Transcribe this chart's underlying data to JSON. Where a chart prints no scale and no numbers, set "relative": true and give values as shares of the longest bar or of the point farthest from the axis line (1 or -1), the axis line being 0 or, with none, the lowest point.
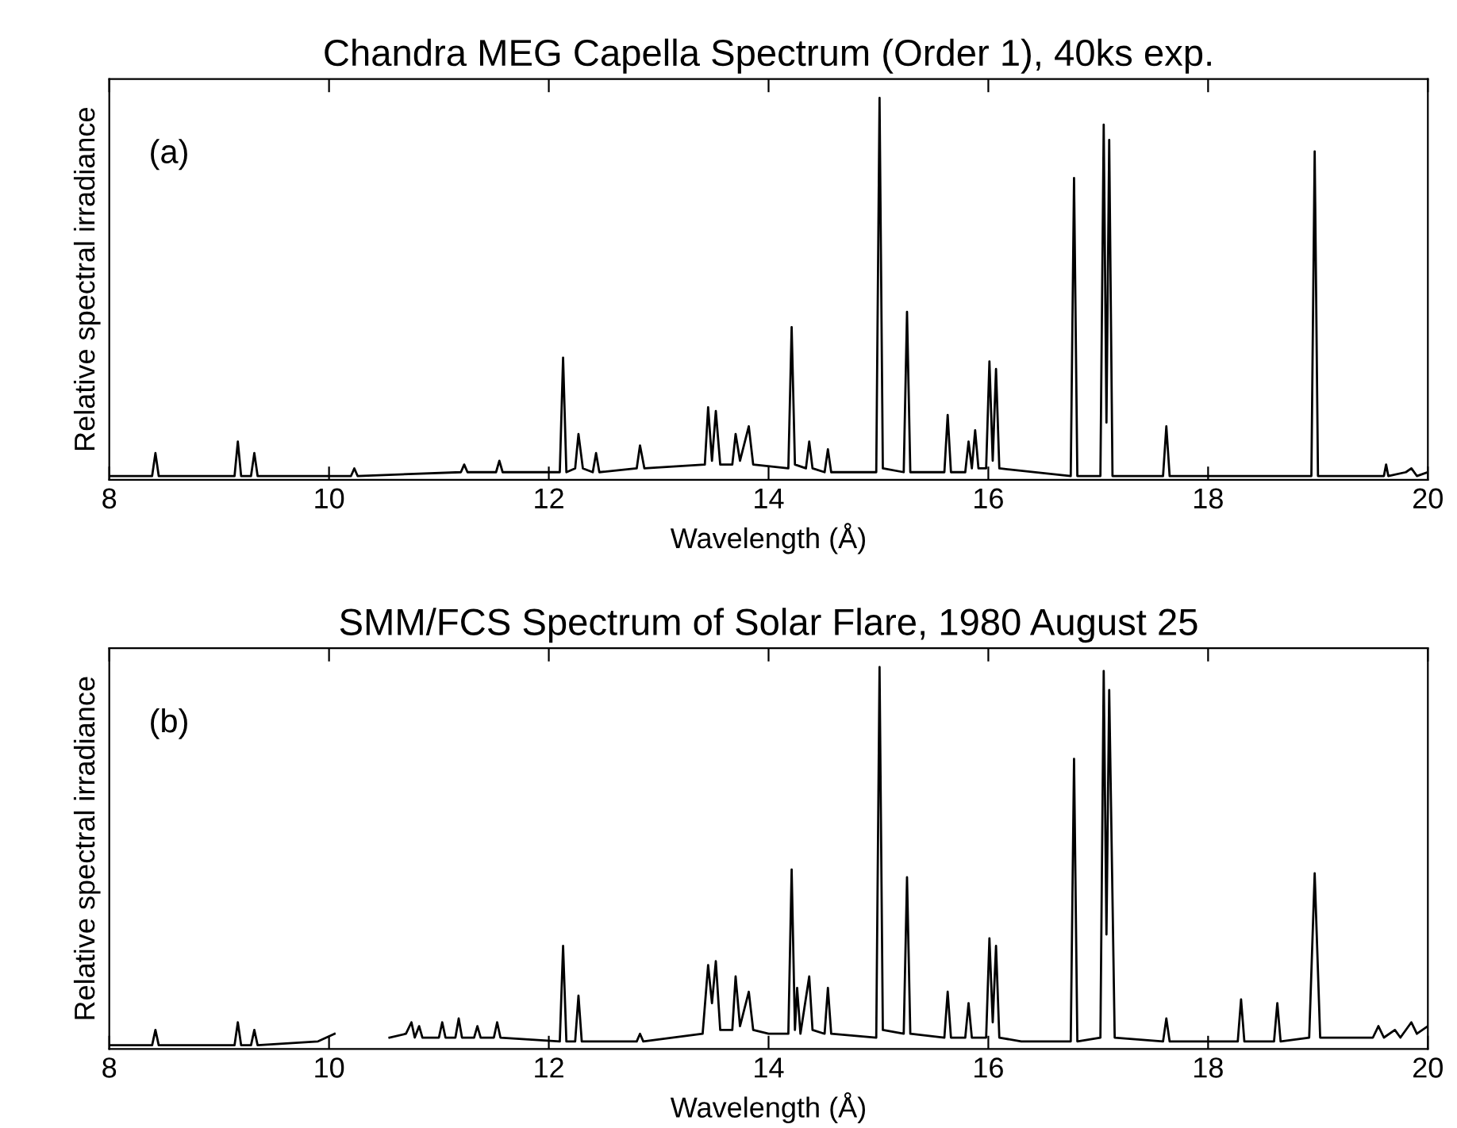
{
  "chart_data": [
    {
      "type": "line",
      "title": "Chandra MEG Capella Spectrum (Order 1), 40ks exp.",
      "xlabel": "Wavelength (Å)",
      "ylabel": "Relative spectral irradiance",
      "relative": true,
      "color": "#000000",
      "annotations": [
        "(a)"
      ],
      "xlim": [
        8,
        20
      ],
      "xticks": [
        8,
        10,
        12,
        14,
        16,
        18,
        20
      ],
      "x": [
        8.0,
        8.39,
        8.42,
        8.45,
        9.14,
        9.17,
        9.2,
        9.29,
        9.32,
        9.35,
        10.2,
        10.23,
        10.26,
        11.2,
        11.23,
        11.26,
        11.52,
        11.55,
        11.58,
        12.1,
        12.13,
        12.16,
        12.24,
        12.27,
        12.31,
        12.4,
        12.43,
        12.46,
        12.8,
        12.83,
        12.87,
        13.42,
        13.45,
        13.485,
        13.52,
        13.56,
        13.67,
        13.7,
        13.74,
        13.82,
        13.86,
        14.18,
        14.21,
        14.24,
        14.34,
        14.37,
        14.4,
        14.51,
        14.54,
        14.57,
        14.98,
        15.01,
        15.04,
        15.23,
        15.26,
        15.29,
        15.6,
        15.63,
        15.66,
        15.79,
        15.82,
        15.85,
        15.88,
        15.91,
        15.98,
        16.01,
        16.04,
        16.07,
        16.1,
        16.75,
        16.78,
        16.81,
        17.02,
        17.05,
        17.075,
        17.1,
        17.13,
        17.59,
        17.62,
        17.65,
        18.94,
        18.97,
        19.0,
        19.6,
        19.62,
        19.64,
        19.8,
        19.85,
        19.9,
        20.0
      ],
      "values": [
        0.01,
        0.01,
        0.07,
        0.01,
        0.01,
        0.1,
        0.01,
        0.01,
        0.07,
        0.01,
        0.01,
        0.03,
        0.01,
        0.02,
        0.04,
        0.02,
        0.02,
        0.05,
        0.02,
        0.02,
        0.32,
        0.02,
        0.03,
        0.12,
        0.03,
        0.02,
        0.07,
        0.02,
        0.03,
        0.09,
        0.03,
        0.04,
        0.19,
        0.05,
        0.18,
        0.04,
        0.04,
        0.12,
        0.05,
        0.14,
        0.04,
        0.03,
        0.4,
        0.04,
        0.03,
        0.1,
        0.03,
        0.02,
        0.08,
        0.02,
        0.02,
        1.0,
        0.03,
        0.02,
        0.44,
        0.02,
        0.02,
        0.17,
        0.02,
        0.02,
        0.1,
        0.03,
        0.13,
        0.03,
        0.03,
        0.31,
        0.05,
        0.29,
        0.03,
        0.01,
        0.79,
        0.01,
        0.01,
        0.93,
        0.15,
        0.89,
        0.01,
        0.01,
        0.14,
        0.01,
        0.01,
        0.86,
        0.01,
        0.01,
        0.04,
        0.01,
        0.02,
        0.03,
        0.01,
        0.02
      ]
    },
    {
      "type": "line",
      "title": "SMM/FCS Spectrum of Solar Flare, 1980 August 25",
      "xlabel": "Wavelength (Å)",
      "ylabel": "Relative spectral irradiance",
      "relative": true,
      "color": "#000000",
      "annotations": [
        "(b)"
      ],
      "xlim": [
        8,
        20
      ],
      "xticks": [
        8,
        10,
        12,
        14,
        16,
        18,
        20
      ],
      "x": [
        8.0,
        8.39,
        8.42,
        8.45,
        9.14,
        9.17,
        9.2,
        9.29,
        9.32,
        9.35,
        9.9,
        10.05,
        10.06,
        10.54,
        10.55,
        10.7,
        10.75,
        10.78,
        10.82,
        10.85,
        11.0,
        11.03,
        11.06,
        11.15,
        11.18,
        11.21,
        11.32,
        11.35,
        11.38,
        11.5,
        11.53,
        11.56,
        12.1,
        12.13,
        12.16,
        12.24,
        12.27,
        12.3,
        12.8,
        12.83,
        12.86,
        13.4,
        13.45,
        13.485,
        13.52,
        13.56,
        13.67,
        13.7,
        13.74,
        13.82,
        13.86,
        14.0,
        14.18,
        14.21,
        14.24,
        14.26,
        14.29,
        14.37,
        14.4,
        14.51,
        14.54,
        14.57,
        14.98,
        15.01,
        15.04,
        15.23,
        15.26,
        15.29,
        15.6,
        15.63,
        15.66,
        15.79,
        15.82,
        15.85,
        15.98,
        16.01,
        16.04,
        16.07,
        16.1,
        16.3,
        16.75,
        16.78,
        16.81,
        17.02,
        17.05,
        17.075,
        17.1,
        17.15,
        17.59,
        17.62,
        17.65,
        18.27,
        18.3,
        18.33,
        18.6,
        18.63,
        18.66,
        18.92,
        18.97,
        19.02,
        19.5,
        19.55,
        19.6,
        19.7,
        19.75,
        19.85,
        19.9,
        20.0
      ],
      "values": [
        0.01,
        0.01,
        0.05,
        0.01,
        0.01,
        0.07,
        0.01,
        0.01,
        0.05,
        0.01,
        0.02,
        0.04,
        null,
        null,
        0.03,
        0.04,
        0.07,
        0.03,
        0.06,
        0.03,
        0.03,
        0.07,
        0.03,
        0.03,
        0.08,
        0.03,
        0.03,
        0.06,
        0.03,
        0.03,
        0.07,
        0.03,
        0.02,
        0.27,
        0.02,
        0.02,
        0.14,
        0.02,
        0.02,
        0.04,
        0.02,
        0.04,
        0.22,
        0.12,
        0.23,
        0.05,
        0.05,
        0.19,
        0.06,
        0.15,
        0.05,
        0.04,
        0.04,
        0.47,
        0.05,
        0.16,
        0.04,
        0.19,
        0.05,
        0.04,
        0.16,
        0.04,
        0.03,
        1.0,
        0.05,
        0.04,
        0.45,
        0.04,
        0.03,
        0.15,
        0.03,
        0.03,
        0.12,
        0.03,
        0.03,
        0.29,
        0.07,
        0.27,
        0.03,
        0.02,
        0.02,
        0.76,
        0.02,
        0.03,
        0.99,
        0.3,
        0.94,
        0.03,
        0.02,
        0.08,
        0.02,
        0.02,
        0.13,
        0.02,
        0.02,
        0.12,
        0.02,
        0.03,
        0.46,
        0.03,
        0.03,
        0.06,
        0.03,
        0.05,
        0.03,
        0.07,
        0.04,
        0.06
      ]
    }
  ]
}
